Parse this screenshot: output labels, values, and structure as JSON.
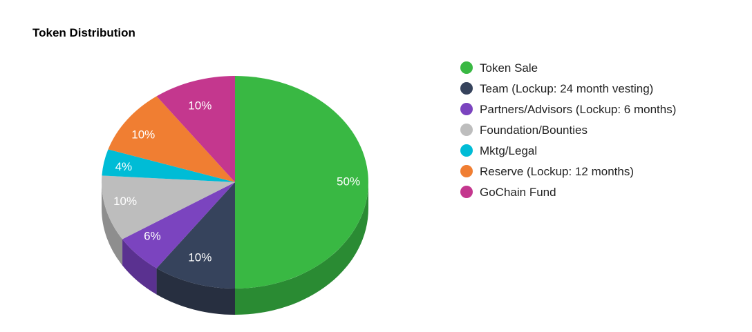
{
  "chart_data": {
    "type": "pie",
    "title": "Token Distribution",
    "legend_position": "right",
    "slices": [
      {
        "name": "Token Sale",
        "value": 50,
        "label": "50%",
        "color": "#39b843",
        "shade": "#2a8b33"
      },
      {
        "name": "Team (Lockup: 24 month vesting)",
        "value": 10,
        "label": "10%",
        "color": "#36435c",
        "shade": "#272f40"
      },
      {
        "name": "Partners/Advisors (Lockup: 6 months)",
        "value": 6,
        "label": "6%",
        "color": "#7b44bf",
        "shade": "#5a3190"
      },
      {
        "name": "Foundation/Bounties",
        "value": 10,
        "label": "10%",
        "color": "#bdbdbd",
        "shade": "#8e8e8e"
      },
      {
        "name": "Mktg/Legal",
        "value": 4,
        "label": "4%",
        "color": "#00bcd6",
        "shade": "#008fa3"
      },
      {
        "name": "Reserve (Lockup: 12 months)",
        "value": 10,
        "label": "10%",
        "color": "#f07e32",
        "shade": "#b85e24"
      },
      {
        "name": "GoChain Fund",
        "value": 10,
        "label": "10%",
        "color": "#c4378e",
        "shade": "#92286a"
      }
    ]
  }
}
